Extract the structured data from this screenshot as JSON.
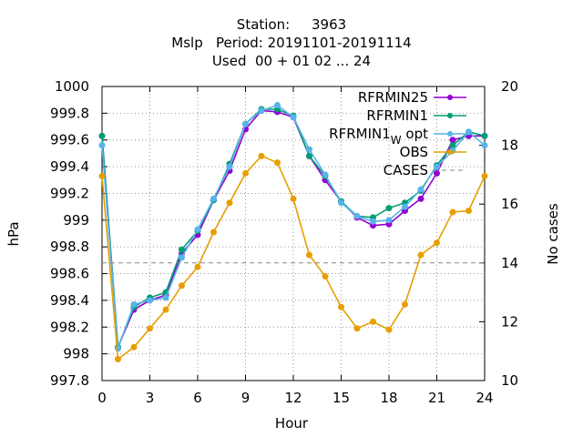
{
  "chart_data": {
    "type": "line",
    "title_lines": [
      "Station:     3963",
      "Mslp   Period: 20191101-20191114",
      "Used  00 + 01 02 ... 24"
    ],
    "xlabel": "Hour",
    "ylabel": "hPa",
    "y2label": "No cases",
    "xlim": [
      0,
      24
    ],
    "ylim": [
      997.8,
      1000
    ],
    "y2lim": [
      10,
      20
    ],
    "x_ticks": [
      "0",
      "3",
      "6",
      "9",
      "12",
      "15",
      "18",
      "21",
      "24"
    ],
    "y_ticks": [
      "997.8",
      "998",
      "998.2",
      "998.4",
      "998.6",
      "998.8",
      "999",
      "999.2",
      "999.4",
      "999.6",
      "999.8",
      "1000"
    ],
    "y2_ticks": [
      "10",
      "12",
      "14",
      "16",
      "18",
      "20"
    ],
    "grid": true,
    "legend_position": "top-right",
    "x": [
      0,
      1,
      2,
      3,
      4,
      5,
      6,
      7,
      8,
      9,
      10,
      11,
      12,
      13,
      14,
      15,
      16,
      17,
      18,
      19,
      20,
      21,
      22,
      23,
      24
    ],
    "series": [
      {
        "name": "RFRMIN25",
        "color": "#9400d3",
        "marker": "plus-circle",
        "values": [
          999.63,
          998.05,
          998.33,
          998.4,
          998.44,
          998.75,
          998.89,
          999.15,
          999.37,
          999.68,
          999.82,
          999.81,
          999.77,
          999.48,
          999.3,
          999.14,
          999.02,
          998.96,
          998.97,
          999.07,
          999.16,
          999.35,
          999.6,
          999.63,
          999.63
        ]
      },
      {
        "name": "RFRMIN1",
        "color": "#009e73",
        "marker": "plus-circle",
        "values": [
          999.63,
          998.05,
          998.35,
          998.42,
          998.46,
          998.78,
          998.92,
          999.15,
          999.42,
          999.72,
          999.83,
          999.83,
          999.78,
          999.48,
          999.33,
          999.14,
          999.03,
          999.02,
          999.09,
          999.13,
          999.22,
          999.41,
          999.56,
          999.66,
          999.63
        ]
      },
      {
        "name": "RFRMIN1",
        "name_subscript": "W",
        "name_suffix": " opt",
        "color": "#56b4e9",
        "marker": "plus-circle",
        "values": [
          999.56,
          998.04,
          998.37,
          998.4,
          998.42,
          998.72,
          998.93,
          999.16,
          999.4,
          999.72,
          999.82,
          999.86,
          999.77,
          999.53,
          999.34,
          999.13,
          999.03,
          998.99,
          999.0,
          999.1,
          999.23,
          999.4,
          999.52,
          999.66,
          999.56
        ]
      },
      {
        "name": "OBS",
        "color": "#e69f00",
        "marker": "plus-circle",
        "values": [
          999.33,
          997.96,
          998.05,
          998.19,
          998.33,
          998.51,
          998.65,
          998.91,
          999.13,
          999.35,
          999.48,
          999.43,
          999.16,
          998.74,
          998.58,
          998.35,
          998.19,
          998.24,
          998.18,
          998.37,
          998.74,
          998.83,
          999.06,
          999.07,
          999.33
        ]
      },
      {
        "name": "CASES",
        "color": "#888888",
        "dashed": true,
        "axis": "y2",
        "values": [
          14,
          14,
          14,
          14,
          14,
          14,
          14,
          14,
          14,
          14,
          14,
          14,
          14,
          14,
          14,
          14,
          14,
          14,
          14,
          14,
          14,
          14,
          14,
          14,
          14
        ]
      }
    ]
  }
}
